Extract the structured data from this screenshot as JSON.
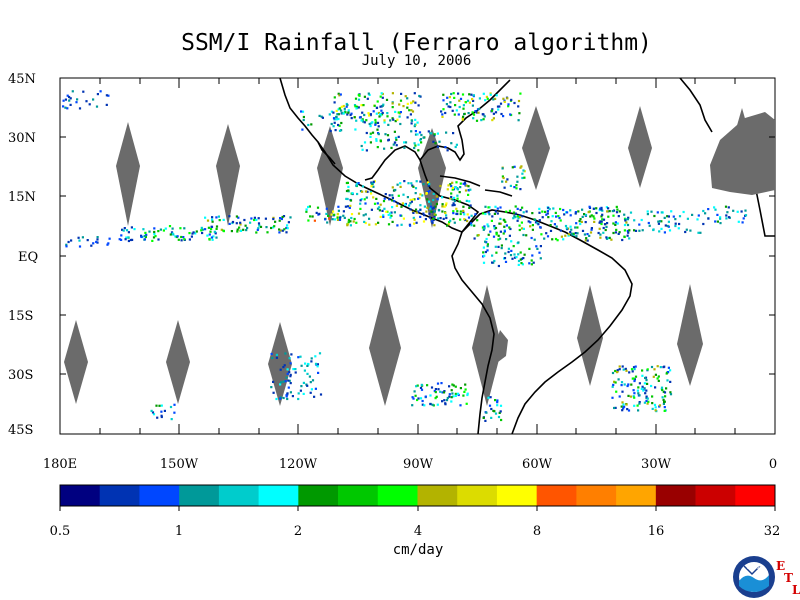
{
  "title": "SSM/I Rainfall (Ferraro algorithm)",
  "subtitle": "July 10, 2006",
  "lat_labels": [
    "45N",
    "30N",
    "15N",
    "EQ",
    "15S",
    "30S",
    "45S"
  ],
  "lon_labels": [
    "180E",
    "150W",
    "120W",
    "90W",
    "60W",
    "30W",
    "0"
  ],
  "colorbar": {
    "colors": [
      "#000080",
      "#0033b3",
      "#0047ff",
      "#009999",
      "#00cccc",
      "#00ffff",
      "#009900",
      "#00c800",
      "#00ff00",
      "#b3b300",
      "#dcdc00",
      "#ffff00",
      "#ff5500",
      "#ff7f00",
      "#ffa500",
      "#990000",
      "#cc0000",
      "#ff0000"
    ],
    "tick_labels": [
      "0.5",
      "1",
      "2",
      "4",
      "8",
      "16",
      "32"
    ],
    "units": "cm/day"
  },
  "logo": {
    "name": "NOAA",
    "letters": [
      "E",
      "T",
      "L"
    ]
  },
  "colors": {
    "no_data": "#6b6b6b",
    "land": "#ffffff",
    "coastline": "#000000"
  }
}
